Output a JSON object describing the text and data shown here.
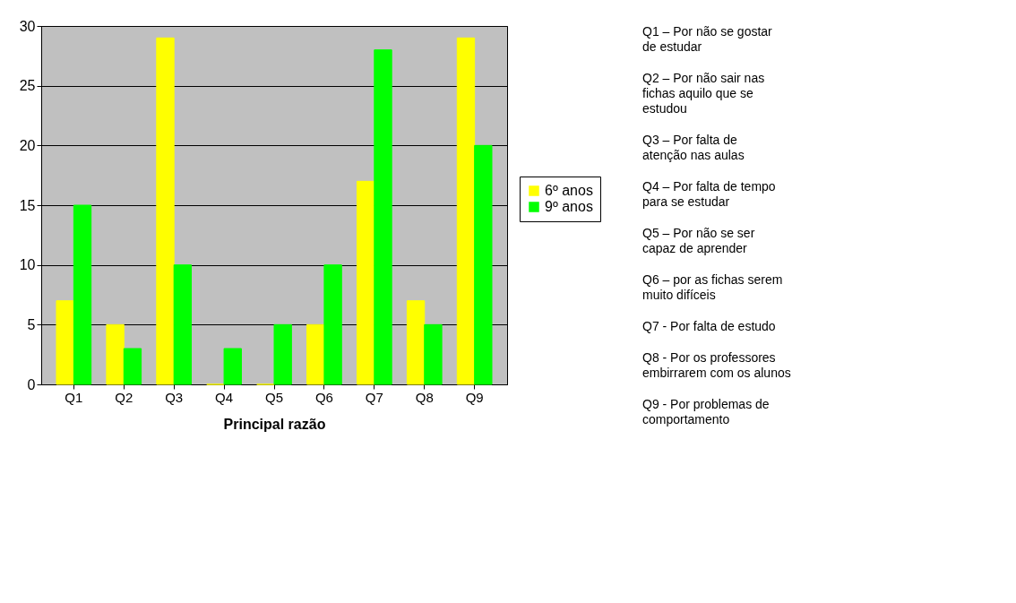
{
  "chart_data": {
    "type": "bar",
    "xlabel": "Principal razão",
    "categories": [
      "Q1",
      "Q2",
      "Q3",
      "Q4",
      "Q5",
      "Q6",
      "Q7",
      "Q8",
      "Q9"
    ],
    "series": [
      {
        "name": "6º anos",
        "color": "#ffff00",
        "values": [
          7,
          5,
          29,
          0,
          0,
          5,
          17,
          7,
          29
        ]
      },
      {
        "name": "9º anos",
        "color": "#00ff00",
        "values": [
          15,
          3,
          10,
          3,
          5,
          10,
          28,
          5,
          20
        ]
      }
    ],
    "ylim": [
      0,
      30
    ],
    "yticks": [
      0,
      5,
      10,
      15,
      20,
      25,
      30
    ],
    "grid": "y",
    "legend": "right",
    "annotations": [
      "Q1 – Por não se gostar de estudar",
      "Q2 – Por não sair nas fichas aquilo que se estudou",
      "Q3 – Por falta de atenção nas aulas",
      "Q4 – Por falta de tempo para se estudar",
      "Q5 – Por não se ser capaz de aprender",
      "Q6 – por as fichas serem muito difíceis",
      "Q7 - Por falta de estudo",
      "Q8 - Por os professores embirrarem com os alunos",
      "Q9 - Por problemas de comportamento"
    ]
  }
}
